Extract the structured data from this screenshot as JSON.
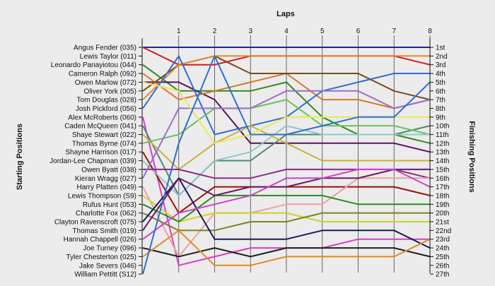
{
  "chart_data": {
    "type": "line",
    "title": "Laps",
    "ylabel": "Starting Positions",
    "y2label": "Finishing Positions",
    "laps": [
      "1",
      "2",
      "3",
      "4",
      "5",
      "6",
      "7",
      "8"
    ],
    "drivers": [
      "Angus Fender (035)",
      "Lewis Taylor (011)",
      "Leonardo Panayiotou (044)",
      "Cameron Ralph (092)",
      "Owen Marlow (072)",
      "Oliver York (005)",
      "Tom Douglas (028)",
      "Josh Pickford (056)",
      "Alex McRoberts (060)",
      "Caden McQueen (041)",
      "Shaye Stewart (022)",
      "Thomas Byrne (074)",
      "Shayne Harrison (017)",
      "Jordan-Lee Chapman (039)",
      "Owen Byatt (038)",
      "Kieran Wragg (027)",
      "Harry Platten (049)",
      "Lewis Thompson (S9)",
      "Rufus Hunt (053)",
      "Charlotte Fox (062)",
      "Clayton Ravenscroft (075)",
      "Thomas Smith (019)",
      "Hannah Chappell (026)",
      "Joe Turney (096)",
      "Tyler Chesterton (025)",
      "Jake Severs (046)",
      "William Pettitt (S12)"
    ],
    "finishing_labels": [
      "1st",
      "2nd",
      "3rd",
      "4th",
      "5th",
      "6th",
      "7th",
      "8th",
      "9th",
      "10th",
      "11th",
      "12th",
      "13th",
      "14th",
      "15th",
      "16th",
      "17th",
      "18th",
      "19th",
      "20th",
      "21st",
      "22nd",
      "23rd",
      "24th",
      "25th",
      "26th",
      "27th"
    ],
    "series": [
      {
        "color": "#1f1fb4",
        "positions": [
          1,
          1,
          1,
          1,
          1,
          1,
          1,
          1,
          1
        ]
      },
      {
        "color": "#d01c1c",
        "positions": [
          1,
          3,
          3,
          2,
          2,
          2,
          2,
          2,
          3
        ]
      },
      {
        "color": "#2e8b22",
        "positions": [
          3,
          6,
          6,
          6,
          5,
          9,
          11,
          11,
          12
        ]
      },
      {
        "color": "#5c0f5c",
        "positions": [
          5,
          5,
          7,
          12,
          12,
          12,
          12,
          12,
          13
        ]
      },
      {
        "color": "#d47a28",
        "positions": [
          4,
          7,
          6,
          5,
          4,
          7,
          7,
          8,
          7
        ]
      },
      {
        "color": "#7b4a1a",
        "positions": [
          6,
          3,
          2,
          4,
          4,
          4,
          4,
          6,
          7
        ]
      },
      {
        "color": "#e08a2a",
        "positions": [
          7,
          3,
          2,
          2,
          2,
          2,
          2,
          2,
          2
        ]
      },
      {
        "color": "#2f6fd0",
        "positions": [
          8,
          2,
          11,
          10,
          9,
          6,
          5,
          4,
          4
        ]
      },
      {
        "color": "#d63cc8",
        "positions": [
          9,
          26,
          25,
          24,
          24,
          24,
          23,
          23,
          23
        ]
      },
      {
        "color": "#4d8a78",
        "positions": [
          10,
          18,
          14,
          14,
          11,
          11,
          11,
          11,
          10
        ]
      },
      {
        "color": "#c8b23a",
        "positions": [
          11,
          15,
          12,
          10,
          12,
          14,
          14,
          14,
          14
        ]
      },
      {
        "color": "#6bc25a",
        "positions": [
          12,
          11,
          8,
          8,
          7,
          10,
          10,
          10,
          11
        ]
      },
      {
        "color": "#9e0f0f",
        "positions": [
          13,
          20,
          17,
          17,
          17,
          17,
          17,
          17,
          18
        ]
      },
      {
        "color": "#8cc8c8",
        "positions": [
          14,
          18,
          14,
          13,
          10,
          11,
          11,
          11,
          11
        ]
      },
      {
        "color": "#8a2a8a",
        "positions": [
          15,
          15,
          16,
          16,
          15,
          15,
          15,
          15,
          16
        ]
      },
      {
        "color": "#9a6ecf",
        "positions": [
          16,
          8,
          8,
          8,
          6,
          6,
          6,
          8,
          7
        ]
      },
      {
        "color": "#e8e85a",
        "positions": [
          5,
          6,
          12,
          11,
          9,
          9,
          9,
          9,
          9
        ]
      },
      {
        "color": "#eaa2a2",
        "positions": [
          17,
          25,
          20,
          20,
          19,
          19,
          16,
          16,
          16
        ]
      },
      {
        "color": "#d0d030",
        "positions": [
          18,
          21,
          20,
          20,
          20,
          21,
          21,
          21,
          21
        ]
      },
      {
        "color": "#2e8b22",
        "positions": [
          19,
          21,
          18,
          18,
          18,
          18,
          19,
          19,
          19
        ]
      },
      {
        "color": "#808020",
        "positions": [
          20,
          22,
          22,
          21,
          21,
          20,
          20,
          20,
          20
        ]
      },
      {
        "color": "#1a1a5c",
        "positions": [
          21,
          16,
          23,
          23,
          23,
          22,
          22,
          22,
          24
        ]
      },
      {
        "color": "#6a1a6a",
        "positions": [
          22,
          16,
          18,
          17,
          17,
          16,
          16,
          15,
          15
        ]
      },
      {
        "color": "#cc44cc",
        "positions": [
          23,
          20,
          19,
          18,
          16,
          16,
          15,
          15,
          17
        ]
      },
      {
        "color": "#202020",
        "positions": [
          24,
          25,
          24,
          25,
          24,
          24,
          24,
          24,
          25
        ]
      },
      {
        "color": "#e08a2a",
        "positions": [
          25,
          22,
          26,
          26,
          25,
          25,
          25,
          25,
          23
        ]
      },
      {
        "color": "#2f6fd0",
        "positions": [
          27,
          12,
          2,
          11,
          11,
          10,
          9,
          9,
          5
        ]
      }
    ]
  }
}
